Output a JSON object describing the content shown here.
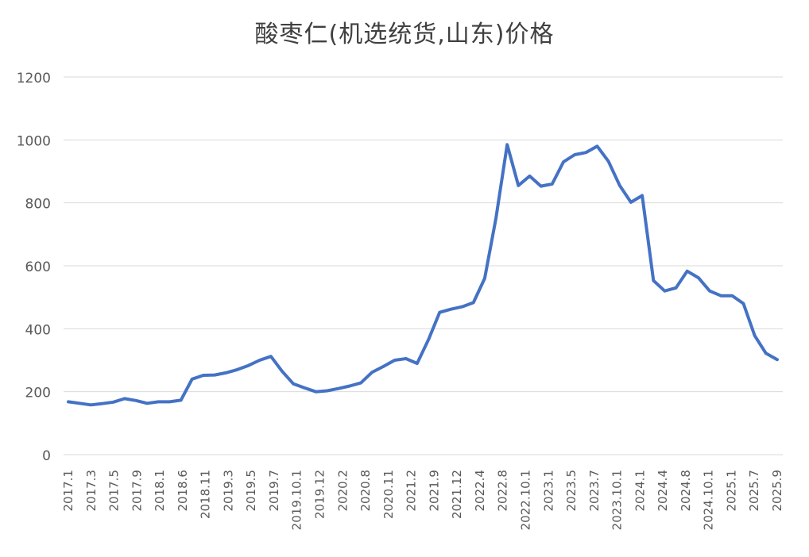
{
  "chart_data": {
    "type": "line",
    "title": "酸枣仁(机选统货,山东)价格",
    "xlabel": "",
    "ylabel": "",
    "ylim": [
      0,
      1200
    ],
    "yticks": [
      0,
      200,
      400,
      600,
      800,
      1000,
      1200
    ],
    "grid": true,
    "legend": "none",
    "x_tick_labels": [
      "2017.1",
      "2017.3",
      "2017.5",
      "2017.9",
      "2018.1",
      "2018.6",
      "2018.11",
      "2019.3",
      "2019.5",
      "2019.7",
      "2019.10.1",
      "2019.12",
      "2020.2",
      "2020.8",
      "2020.11",
      "2021.2",
      "2021.9",
      "2021.12",
      "2022.4",
      "2022.8",
      "2022.10.1",
      "2023.1",
      "2023.5",
      "2023.7",
      "2023.10.1",
      "2024.1",
      "2024.4",
      "2024.8",
      "2024.10.1",
      "2025.1",
      "2025.7",
      "2025.9"
    ],
    "series": [
      {
        "color": "#4472c4",
        "values": [
          168,
          163,
          158,
          162,
          167,
          178,
          172,
          163,
          168,
          168,
          173,
          240,
          252,
          253,
          260,
          270,
          283,
          300,
          312,
          265,
          225,
          212,
          200,
          203,
          210,
          218,
          228,
          262,
          280,
          300,
          305,
          290,
          365,
          452,
          462,
          470,
          483,
          560,
          750,
          985,
          855,
          885,
          853,
          860,
          930,
          953,
          960,
          980,
          932,
          855,
          802,
          823,
          553,
          520,
          530,
          583,
          562,
          520,
          505,
          505,
          480,
          378,
          322,
          302
        ]
      }
    ]
  }
}
